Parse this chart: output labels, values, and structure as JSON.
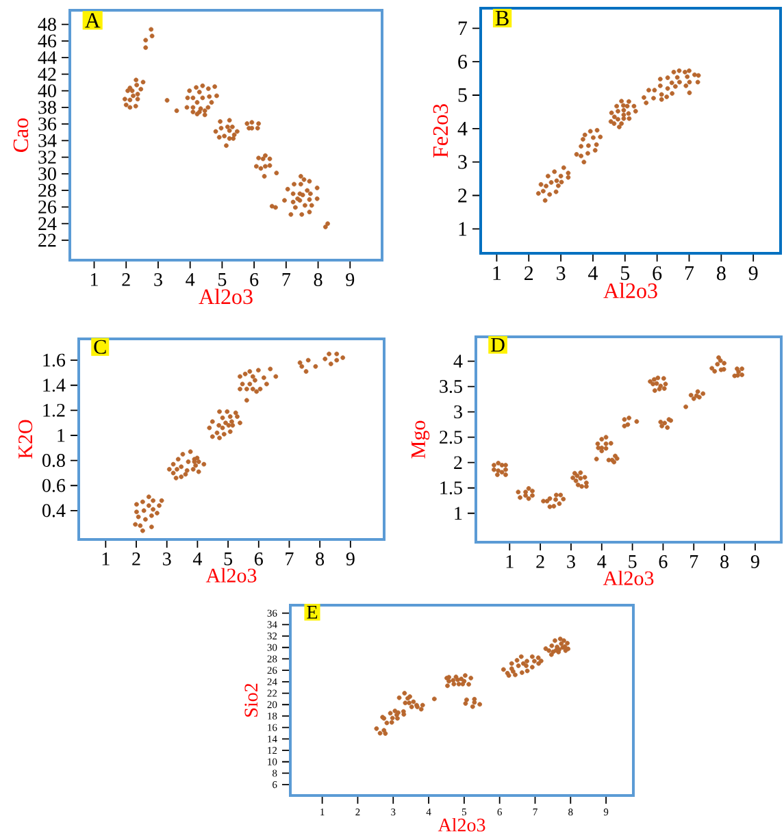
{
  "chart_data": [
    {
      "type": "scatter",
      "title": "A",
      "xlabel": "Al2o3",
      "ylabel": "Cao",
      "color": "#b8672e",
      "marker": "circle",
      "xlim": [
        0.24,
        10
      ],
      "ylim": [
        19.6,
        49.7
      ],
      "xticks": [
        1,
        2,
        3,
        4,
        5,
        6,
        7,
        8,
        9
      ],
      "yticks": [
        22,
        24,
        26,
        28,
        30,
        32,
        34,
        36,
        38,
        40,
        42,
        44,
        46,
        48
      ],
      "x": [
        2.78,
        2.81,
        2.61,
        2.61,
        2.31,
        2.53,
        2.33,
        2.12,
        2.46,
        2.05,
        2.19,
        2.36,
        2.22,
        1.96,
        2.12,
        2.36,
        2.0,
        2.12,
        2.3,
        3.28,
        3.58,
        3.98,
        4.19,
        4.39,
        4.29,
        4.57,
        4.77,
        3.92,
        4.09,
        4.39,
        4.6,
        4.83,
        4.22,
        3.9,
        4.09,
        4.33,
        4.56,
        4.67,
        4.09,
        4.22,
        4.29,
        4.46,
        4.46,
        4.94,
        5.23,
        4.97,
        5.17,
        5.32,
        5.23,
        4.8,
        5.47,
        5.38,
        4.91,
        5.07,
        5.23,
        5.35,
        5.13,
        5.78,
        5.93,
        6.14,
        5.84,
        5.93,
        6.11,
        6.35,
        6.14,
        6.28,
        6.49,
        6.07,
        6.21,
        6.35,
        6.49,
        6.32,
        6.7,
        6.56,
        6.67,
        7.46,
        7.56,
        7.73,
        7.97,
        7.05,
        7.25,
        7.46,
        7.22,
        7.43,
        7.52,
        7.66,
        7.76,
        6.95,
        7.22,
        7.36,
        7.43,
        7.73,
        7.97,
        7.29,
        7.59,
        7.8,
        7.15,
        7.49,
        7.73,
        8.23,
        8.3
      ],
      "values": [
        47.4,
        46.6,
        46.1,
        45.2,
        41.3,
        41.05,
        40.7,
        40.35,
        40.2,
        40.0,
        40.0,
        39.6,
        39.4,
        39.0,
        38.9,
        39.0,
        38.3,
        38.0,
        38.15,
        38.85,
        37.6,
        40.0,
        40.4,
        40.6,
        39.85,
        40.25,
        40.5,
        39.15,
        39.15,
        39.15,
        39.3,
        39.4,
        38.6,
        38.0,
        38.0,
        37.85,
        38.0,
        38.6,
        37.45,
        37.2,
        37.45,
        37.6,
        37.1,
        36.3,
        36.45,
        35.5,
        35.65,
        35.65,
        35.2,
        35.1,
        35.1,
        34.7,
        34.4,
        34.55,
        34.25,
        34.25,
        33.4,
        36.05,
        36.2,
        36.05,
        35.5,
        35.5,
        35.5,
        32.2,
        31.9,
        31.8,
        31.8,
        30.9,
        30.65,
        30.9,
        31.0,
        29.7,
        30.1,
        26.1,
        25.95,
        29.7,
        29.3,
        29.1,
        28.3,
        28.15,
        28.75,
        28.75,
        27.6,
        27.6,
        27.45,
        28.0,
        27.6,
        26.8,
        26.6,
        27.0,
        26.8,
        26.9,
        27.0,
        25.95,
        26.2,
        26.2,
        25.1,
        25.1,
        25.4,
        23.6,
        24.0
      ]
    },
    {
      "type": "scatter",
      "title": "B",
      "xlabel": "Al2o3",
      "ylabel": "Fe2o3",
      "color": "#b8672e",
      "marker": "circle",
      "xlim": [
        0.5,
        9.85
      ],
      "ylim": [
        0.27,
        7.6
      ],
      "xticks": [
        1,
        2,
        3,
        4,
        5,
        6,
        7,
        8,
        9
      ],
      "yticks": [
        1,
        2,
        3,
        4,
        5,
        6,
        7
      ],
      "x": [
        2.3,
        2.38,
        2.45,
        2.51,
        2.54,
        2.6,
        2.65,
        2.7,
        2.8,
        2.85,
        2.87,
        2.92,
        3.0,
        3.02,
        3.09,
        3.23,
        3.23,
        3.49,
        3.63,
        3.72,
        3.63,
        3.69,
        3.75,
        3.86,
        3.84,
        3.92,
        4.01,
        4.07,
        4.11,
        4.13,
        4.23,
        4.56,
        4.58,
        4.66,
        4.67,
        4.74,
        4.78,
        4.78,
        4.82,
        4.89,
        4.89,
        4.95,
        4.96,
        4.96,
        4.96,
        5.07,
        5.11,
        5.12,
        5.13,
        5.28,
        5.33,
        5.59,
        5.66,
        5.74,
        5.89,
        5.92,
        6.1,
        6.1,
        6.14,
        6.14,
        6.33,
        6.33,
        6.3,
        6.46,
        6.47,
        6.52,
        6.57,
        6.63,
        6.69,
        6.7,
        6.87,
        6.9,
        6.94,
        7.0,
        7.01,
        7.01,
        7.17,
        7.27,
        7.29
      ],
      "values": [
        2.06,
        2.33,
        2.13,
        1.85,
        2.28,
        2.58,
        2.03,
        2.39,
        2.71,
        2.11,
        2.44,
        2.29,
        2.58,
        2.4,
        2.83,
        2.67,
        2.54,
        3.23,
        3.18,
        3.0,
        3.47,
        3.68,
        3.81,
        3.49,
        3.26,
        3.92,
        3.73,
        3.35,
        3.52,
        3.95,
        3.75,
        4.21,
        4.47,
        4.15,
        4.35,
        4.67,
        4.52,
        4.28,
        4.05,
        4.82,
        4.15,
        4.69,
        4.55,
        4.41,
        4.3,
        4.67,
        4.45,
        4.81,
        4.3,
        4.67,
        4.52,
        4.93,
        4.77,
        5.15,
        4.91,
        5.15,
        5.48,
        5.28,
        5.02,
        4.87,
        5.52,
        5.2,
        4.95,
        5.37,
        5.05,
        5.69,
        5.26,
        5.53,
        5.73,
        5.39,
        5.69,
        5.28,
        5.55,
        5.73,
        5.39,
        5.07,
        5.61,
        5.39,
        5.59
      ]
    },
    {
      "type": "scatter",
      "title": "C",
      "xlabel": "Al2o3",
      "ylabel": "K2O",
      "color": "#b8672e",
      "marker": "circle",
      "xlim": [
        0.12,
        10.1
      ],
      "ylim": [
        0.17,
        1.77
      ],
      "xticks": [
        1,
        2,
        3,
        4,
        5,
        6,
        7,
        8,
        9
      ],
      "yticks": [
        0.4,
        0.6,
        0.8,
        1,
        1.2,
        1.4,
        1.6
      ],
      "x": [
        2.01,
        2.01,
        1.97,
        2.07,
        2.13,
        2.21,
        2.21,
        2.25,
        2.3,
        2.41,
        2.41,
        2.5,
        2.5,
        2.55,
        2.55,
        2.68,
        2.75,
        2.83,
        3.08,
        3.21,
        3.21,
        3.3,
        3.33,
        3.37,
        3.47,
        3.47,
        3.52,
        3.61,
        3.66,
        3.7,
        3.77,
        3.86,
        3.9,
        3.9,
        3.94,
        3.99,
        4.04,
        4.04,
        4.21,
        4.39,
        4.49,
        4.49,
        4.64,
        4.7,
        4.72,
        4.72,
        4.82,
        4.82,
        4.87,
        4.92,
        4.97,
        5.02,
        5.07,
        5.07,
        5.12,
        5.15,
        5.25,
        5.3,
        5.39,
        5.39,
        5.39,
        5.47,
        5.56,
        5.61,
        5.61,
        5.71,
        5.71,
        5.81,
        5.81,
        5.88,
        5.93,
        5.99,
        6.05,
        6.17,
        6.26,
        6.38,
        6.56,
        7.35,
        7.41,
        7.55,
        7.62,
        7.86,
        8.17,
        8.3,
        8.36,
        8.55,
        8.55,
        8.75
      ],
      "values": [
        0.45,
        0.39,
        0.29,
        0.35,
        0.28,
        0.47,
        0.24,
        0.4,
        0.33,
        0.51,
        0.44,
        0.36,
        0.27,
        0.48,
        0.41,
        0.38,
        0.44,
        0.48,
        0.73,
        0.77,
        0.7,
        0.66,
        0.73,
        0.81,
        0.75,
        0.67,
        0.85,
        0.69,
        0.72,
        0.79,
        0.87,
        0.73,
        0.81,
        0.79,
        0.76,
        0.82,
        0.79,
        0.71,
        0.77,
        1.06,
        1.11,
        0.99,
        1.02,
        1.08,
        1.19,
        0.98,
        1.06,
        1.14,
        1.01,
        1.1,
        1.19,
        1.08,
        1.03,
        1.15,
        1.11,
        1.08,
        1.18,
        1.15,
        1.1,
        1.47,
        1.37,
        1.41,
        1.49,
        1.28,
        1.37,
        1.51,
        1.41,
        1.47,
        1.37,
        1.44,
        1.35,
        1.52,
        1.37,
        1.46,
        1.41,
        1.53,
        1.47,
        1.58,
        1.55,
        1.51,
        1.6,
        1.55,
        1.61,
        1.65,
        1.57,
        1.65,
        1.6,
        1.62
      ]
    },
    {
      "type": "scatter",
      "title": "D",
      "xlabel": "Al2o3",
      "ylabel": "Mgo",
      "color": "#b8672e",
      "marker": "circle",
      "xlim": [
        -0.1,
        9.85
      ],
      "ylim": [
        0.43,
        4.48
      ],
      "xticks": [
        1,
        2,
        3,
        4,
        5,
        6,
        7,
        8,
        9
      ],
      "yticks": [
        1,
        1.5,
        2,
        2.5,
        3,
        3.5,
        4
      ],
      "x": [
        0.49,
        0.63,
        0.75,
        0.87,
        0.49,
        0.63,
        0.75,
        0.87,
        0.6,
        0.87,
        1.28,
        1.34,
        1.52,
        1.62,
        1.62,
        1.52,
        1.74,
        1.74,
        2.1,
        2.22,
        2.31,
        2.31,
        2.44,
        2.5,
        2.52,
        2.62,
        2.66,
        2.75,
        3.06,
        3.12,
        3.2,
        3.31,
        3.16,
        3.45,
        3.23,
        3.35,
        3.5,
        3.5,
        3.31,
        3.83,
        4.0,
        4.14,
        3.87,
        4.0,
        4.14,
        4.14,
        4.3,
        4.0,
        3.89,
        4.23,
        4.34,
        4.44,
        4.4,
        4.5,
        4.74,
        4.89,
        4.74,
        4.85,
        5.14,
        5.58,
        5.71,
        5.83,
        6.02,
        5.67,
        5.79,
        5.92,
        6.08,
        5.73,
        5.88,
        6.04,
        5.92,
        6.05,
        6.19,
        6.25,
        5.96,
        6.14,
        6.74,
        6.91,
        7.0,
        7.09,
        7.13,
        7.18,
        7.3,
        7.59,
        7.68,
        7.77,
        7.81,
        7.87,
        7.89,
        7.98,
        7.99,
        8.41,
        8.57,
        8.46,
        8.33,
        8.43,
        8.57
      ],
      "values": [
        1.95,
        1.99,
        1.95,
        1.95,
        1.86,
        1.84,
        1.81,
        1.86,
        1.76,
        1.76,
        1.42,
        1.31,
        1.42,
        1.49,
        1.29,
        1.35,
        1.35,
        1.44,
        1.24,
        1.24,
        1.29,
        1.13,
        1.14,
        1.27,
        1.36,
        1.19,
        1.36,
        1.28,
        1.7,
        1.79,
        1.74,
        1.8,
        1.64,
        1.71,
        1.56,
        1.53,
        1.53,
        1.6,
        1.69,
        2.07,
        2.46,
        2.5,
        2.37,
        2.29,
        2.28,
        2.37,
        2.38,
        2.23,
        2.29,
        2.05,
        2.05,
        2.13,
        2.01,
        2.08,
        2.85,
        2.88,
        2.72,
        2.75,
        2.81,
        3.6,
        3.64,
        3.67,
        3.66,
        3.55,
        3.56,
        3.51,
        3.55,
        3.42,
        3.45,
        3.46,
        2.8,
        2.78,
        2.85,
        2.83,
        2.72,
        2.69,
        3.1,
        3.33,
        3.26,
        3.32,
        3.4,
        3.29,
        3.36,
        3.86,
        3.8,
        3.94,
        4.07,
        4.01,
        3.83,
        3.84,
        3.96,
        3.85,
        3.85,
        3.79,
        3.71,
        3.72,
        3.73
      ]
    },
    {
      "type": "scatter",
      "title": "E",
      "xlabel": "Al2o3",
      "ylabel": "Sio2",
      "color": "#b8672e",
      "marker": "circle",
      "xlim": [
        0.1,
        9.77
      ],
      "ylim": [
        4.1,
        37.4
      ],
      "xticks": [
        1,
        2,
        3,
        4,
        5,
        6,
        7,
        8,
        9
      ],
      "yticks": [
        6,
        8,
        10,
        12,
        14,
        16,
        18,
        20,
        22,
        24,
        26,
        28,
        30,
        32,
        34,
        36
      ],
      "x": [
        2.53,
        2.63,
        2.74,
        2.78,
        2.7,
        2.74,
        2.82,
        2.96,
        2.92,
        2.98,
        3.05,
        3.1,
        3.14,
        3.29,
        3.3,
        3.12,
        3.17,
        3.32,
        3.41,
        3.47,
        3.34,
        3.45,
        3.57,
        3.52,
        3.66,
        3.68,
        3.79,
        3.83,
        4.16,
        4.51,
        4.57,
        4.77,
        4.92,
        5.03,
        5.19,
        4.57,
        4.69,
        4.82,
        5.0,
        4.53,
        4.71,
        4.85,
        4.96,
        5.13,
        5.07,
        5.29,
        5.04,
        5.29,
        5.44,
        5.24,
        6.11,
        6.22,
        6.26,
        6.34,
        6.38,
        6.44,
        6.49,
        6.53,
        6.61,
        6.63,
        6.67,
        6.75,
        6.77,
        6.78,
        6.92,
        6.92,
        6.98,
        7.09,
        7.1,
        7.17,
        6.34,
        7.3,
        7.39,
        7.46,
        7.47,
        7.51,
        7.56,
        7.62,
        7.66,
        7.68,
        7.71,
        7.74,
        7.78,
        7.81,
        7.84,
        7.86,
        7.91,
        7.93,
        7.59
      ],
      "values": [
        15.8,
        15.0,
        15.5,
        14.95,
        17.8,
        17.6,
        16.8,
        16.9,
        18.5,
        17.65,
        18.9,
        18.2,
        18.6,
        18.8,
        18.3,
        17.6,
        21.2,
        22.0,
        21.1,
        21.4,
        20.3,
        20.3,
        20.5,
        19.6,
        19.9,
        19.6,
        19.2,
        19.9,
        21.0,
        24.65,
        24.8,
        24.85,
        24.5,
        25.1,
        24.65,
        24.1,
        24.25,
        24.35,
        24.1,
        23.3,
        23.6,
        23.6,
        23.6,
        23.55,
        20.85,
        20.95,
        20.2,
        20.4,
        20.05,
        19.65,
        26.15,
        25.5,
        25.1,
        27.2,
        25.8,
        25.2,
        27.75,
        26.8,
        28.4,
        25.6,
        27.2,
        26.8,
        27.6,
        25.9,
        28.4,
        26.55,
        27.6,
        28.2,
        27.2,
        27.65,
        26.3,
        29.8,
        29.45,
        28.75,
        30.3,
        29.25,
        31.2,
        30.1,
        29.2,
        29.65,
        31.5,
        30.65,
        30.0,
        31.2,
        30.15,
        29.45,
        30.75,
        29.75,
        29.5
      ]
    }
  ]
}
